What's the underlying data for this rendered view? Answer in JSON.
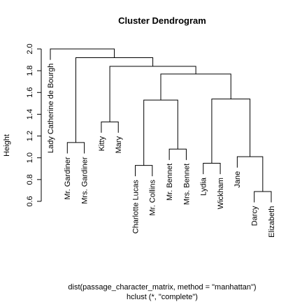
{
  "chart_data": {
    "type": "dendrogram",
    "title": "Cluster Dendrogram",
    "ylabel": "Height",
    "xlabel_lines": [
      "dist(passage_character_matrix, method = \"manhattan\")",
      "hclust (*, \"complete\")"
    ],
    "ylim": [
      0.6,
      2.0
    ],
    "yticks": [
      0.6,
      0.8,
      1.0,
      1.2,
      1.4,
      1.6,
      1.8,
      2.0
    ],
    "leaves": [
      "Lady Catherine de Bourgh",
      "Mr. Gardiner",
      "Mrs. Gardiner",
      "Kitty",
      "Mary",
      "Charlotte Lucas",
      "Mr. Collins",
      "Mr. Bennet",
      "Mrs. Bennet",
      "Lydia",
      "Wickham",
      "Jane",
      "Darcy",
      "Elizabeth"
    ],
    "merges": [
      {
        "left": "L:Darcy",
        "right": "L:Elizabeth",
        "height": 0.69
      },
      {
        "left": "L:Lydia",
        "right": "L:Wickham",
        "height": 0.95
      },
      {
        "left": "L:Jane",
        "right": "M:0",
        "height": 1.01
      },
      {
        "left": "L:Mr. Bennet",
        "right": "L:Mrs. Bennet",
        "height": 1.08
      },
      {
        "left": "L:Mr. Gardiner",
        "right": "L:Mrs. Gardiner",
        "height": 1.14
      },
      {
        "left": "L:Charlotte Lucas",
        "right": "L:Mr. Collins",
        "height": 0.93
      },
      {
        "left": "L:Kitty",
        "right": "L:Mary",
        "height": 1.33
      },
      {
        "left": "M:5",
        "right": "M:3",
        "height": 1.53
      },
      {
        "left": "M:1",
        "right": "M:2",
        "height": 1.54
      },
      {
        "left": "M:7",
        "right": "M:8",
        "height": 1.77
      },
      {
        "left": "M:6",
        "right": "M:9",
        "height": 1.84
      },
      {
        "left": "M:4",
        "right": "M:10",
        "height": 1.92
      },
      {
        "left": "L:Lady Catherine de Bourgh",
        "right": "M:11",
        "height": 2.0
      }
    ]
  }
}
